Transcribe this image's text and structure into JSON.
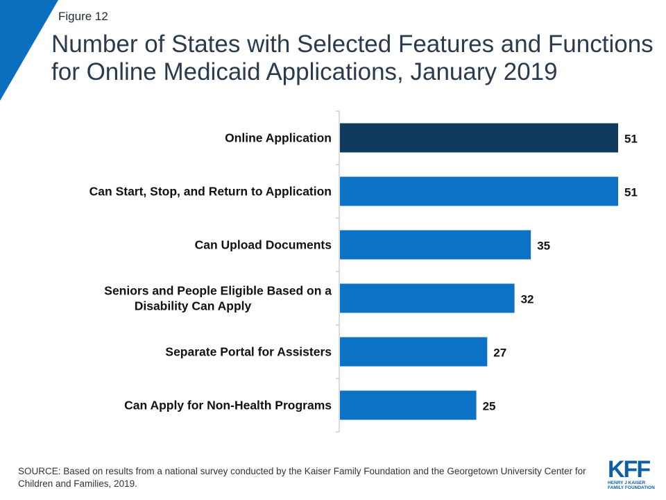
{
  "figure_label": "Figure 12",
  "title_lines": [
    "Number of States with Selected Features and Functions",
    "for Online Medicaid Applications, January 2019"
  ],
  "colors": {
    "accent_corner": "#0b6fbf",
    "bar_primary": "#103a5e",
    "bar_secondary": "#0b72c6",
    "axis": "#b9b9b9"
  },
  "chart_data": {
    "type": "bar",
    "orientation": "horizontal",
    "categories": [
      [
        "Online Application"
      ],
      [
        "Can Start, Stop, and Return to Application"
      ],
      [
        "Can Upload Documents"
      ],
      [
        "Seniors and People Eligible Based on a",
        "Disability Can Apply"
      ],
      [
        "Separate Portal for Assisters"
      ],
      [
        "Can Apply for Non-Health Programs"
      ]
    ],
    "values": [
      51,
      51,
      35,
      32,
      27,
      25
    ],
    "value_labels": [
      "51",
      "51",
      "35",
      "32",
      "27",
      "25"
    ],
    "highlight_index": 0,
    "title": "Number of States with Selected Features and Functions for Online Medicaid Applications, January 2019",
    "xlabel": "",
    "ylabel": "",
    "xlim": [
      0,
      51
    ],
    "grid": false,
    "legend": "none"
  },
  "source": "SOURCE: Based on results from a national survey conducted by the Kaiser Family Foundation and the Georgetown University Center for Children and Families, 2019.",
  "logo": {
    "mark": "KFF",
    "line1": "HENRY J KAISER",
    "line2": "FAMILY FOUNDATION"
  }
}
